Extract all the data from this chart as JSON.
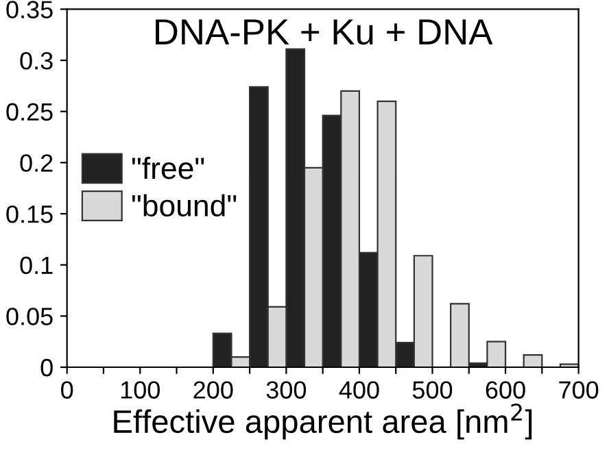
{
  "chart_data": {
    "type": "histogram",
    "title": "DNA-PK + Ku + DNA",
    "xlabel": "Effective apparent area [nm$^{2}$]",
    "bins": [
      0,
      50,
      100,
      150,
      200,
      250,
      300,
      350,
      400,
      450,
      500,
      550,
      600,
      650,
      700
    ],
    "series": [
      {
        "name": "\"free\"",
        "color": "#222222",
        "values": [
          0,
          0,
          0,
          0,
          0.033,
          0.274,
          0.311,
          0.246,
          0.112,
          0.024,
          0,
          0.004,
          0,
          0
        ]
      },
      {
        "name": "\"bound\"",
        "color": "#d9d9d9",
        "values": [
          0,
          0,
          0,
          0,
          0.01,
          0.059,
          0.195,
          0.27,
          0.26,
          0.109,
          0.062,
          0.025,
          0.012,
          0.003
        ]
      }
    ],
    "xlim": [
      0,
      700
    ],
    "ylim": [
      0,
      0.35
    ],
    "xticks": [
      0,
      {
        "value": 50,
        "label": null
      },
      100,
      {
        "value": 150,
        "label": null
      },
      200,
      {
        "value": 250,
        "label": null
      },
      300,
      {
        "value": 350,
        "label": null
      },
      400,
      {
        "value": 450,
        "label": null
      },
      500,
      {
        "value": 550,
        "label": null
      },
      600,
      {
        "value": 650,
        "label": null
      },
      700
    ],
    "yticks": [
      0,
      0.05,
      0.1,
      0.15,
      0.2,
      0.25,
      0.3,
      0.35
    ],
    "legend": "center left",
    "grid": false
  }
}
